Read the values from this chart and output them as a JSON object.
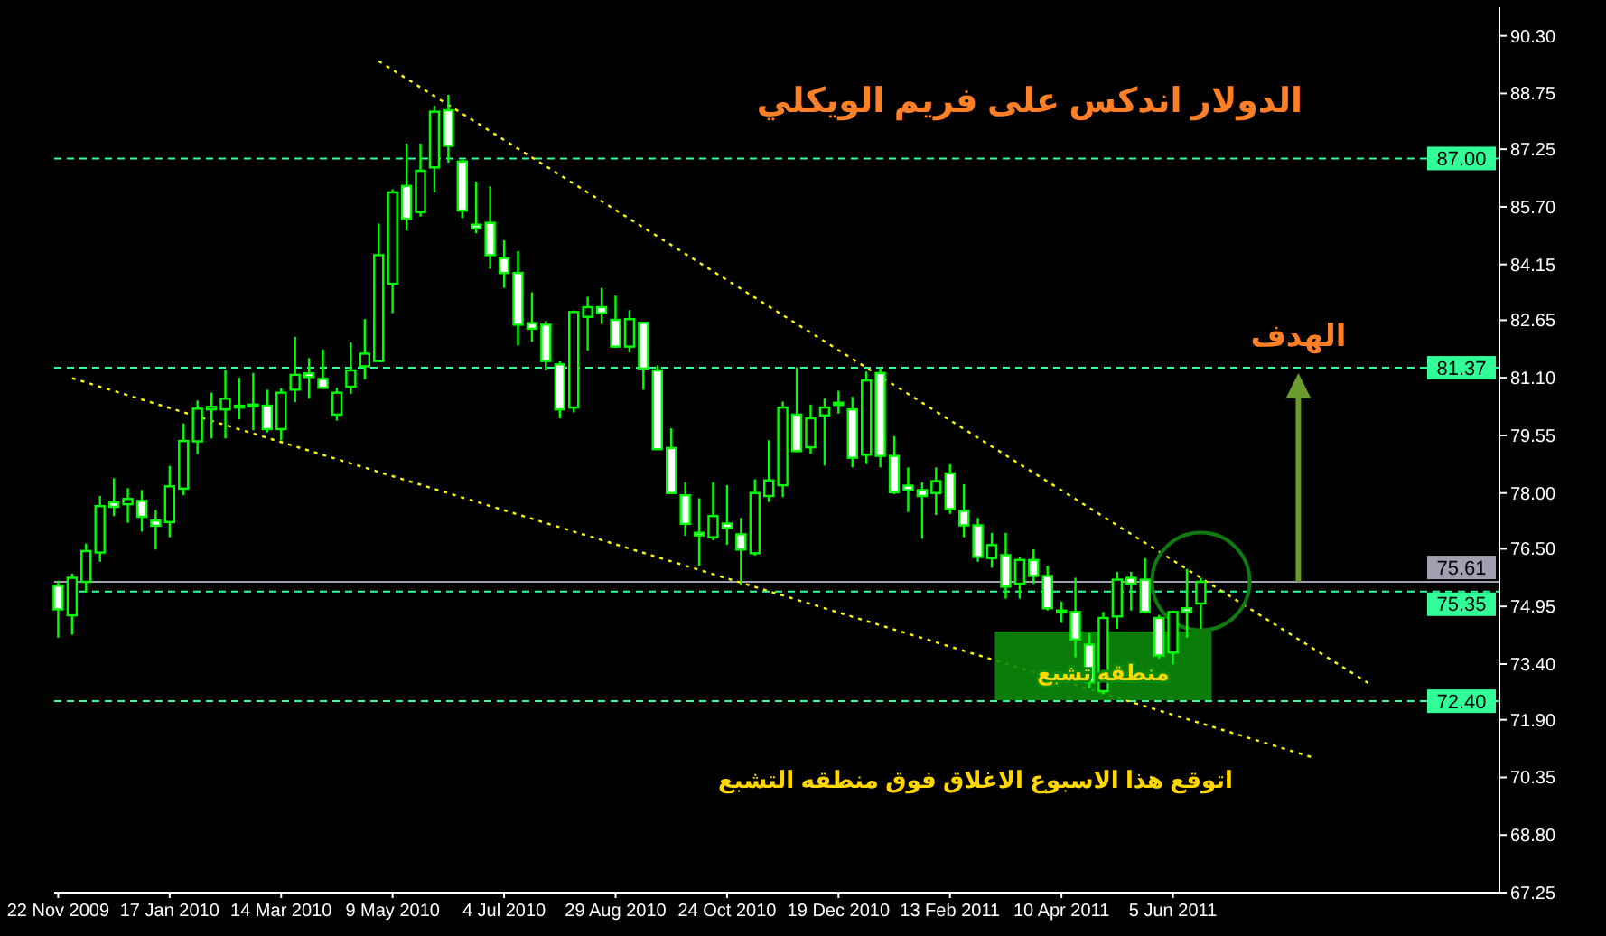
{
  "chart_data": {
    "type": "candlestick",
    "title": "الدولار اندكس على فريم الويكلي",
    "color": "#00ff00",
    "x": [
      "2009-11-22",
      "2009-11-29",
      "2009-12-06",
      "2009-12-13",
      "2009-12-20",
      "2009-12-27",
      "2010-01-03",
      "2010-01-10",
      "2010-01-17",
      "2010-01-24",
      "2010-01-31",
      "2010-02-07",
      "2010-02-14",
      "2010-02-21",
      "2010-02-28",
      "2010-03-07",
      "2010-03-14",
      "2010-03-21",
      "2010-03-28",
      "2010-04-04",
      "2010-04-11",
      "2010-04-18",
      "2010-04-25",
      "2010-05-02",
      "2010-05-09",
      "2010-05-16",
      "2010-05-23",
      "2010-05-30",
      "2010-06-06",
      "2010-06-13",
      "2010-06-20",
      "2010-06-27",
      "2010-07-04",
      "2010-07-11",
      "2010-07-18",
      "2010-07-25",
      "2010-08-01",
      "2010-08-08",
      "2010-08-15",
      "2010-08-22",
      "2010-08-29",
      "2010-09-05",
      "2010-09-12",
      "2010-09-19",
      "2010-09-26",
      "2010-10-03",
      "2010-10-10",
      "2010-10-17",
      "2010-10-24",
      "2010-10-31",
      "2010-11-07",
      "2010-11-14",
      "2010-11-21",
      "2010-11-28",
      "2010-12-05",
      "2010-12-12",
      "2010-12-19",
      "2010-12-26",
      "2011-01-02",
      "2011-01-09",
      "2011-01-16",
      "2011-01-23",
      "2011-01-30",
      "2011-02-06",
      "2011-02-13",
      "2011-02-20",
      "2011-02-27",
      "2011-03-06",
      "2011-03-13",
      "2011-03-20",
      "2011-03-27",
      "2011-04-03",
      "2011-04-10",
      "2011-04-17",
      "2011-04-24",
      "2011-05-01",
      "2011-05-08",
      "2011-05-15",
      "2011-05-22",
      "2011-05-29",
      "2011-06-05",
      "2011-06-12",
      "2011-06-19"
    ],
    "ohlc": [
      [
        75.51,
        75.64,
        74.11,
        74.87
      ],
      [
        74.71,
        75.83,
        74.19,
        75.72
      ],
      [
        75.61,
        76.64,
        75.32,
        76.44
      ],
      [
        76.4,
        77.92,
        76.15,
        77.65
      ],
      [
        77.75,
        78.4,
        77.38,
        77.63
      ],
      [
        77.7,
        78.13,
        77.2,
        77.84
      ],
      [
        77.79,
        78.08,
        76.96,
        77.36
      ],
      [
        77.26,
        77.54,
        76.48,
        77.12
      ],
      [
        77.22,
        78.73,
        76.81,
        78.18
      ],
      [
        78.12,
        79.87,
        77.94,
        79.4
      ],
      [
        79.39,
        80.49,
        79.05,
        80.27
      ],
      [
        80.25,
        80.7,
        79.47,
        80.32
      ],
      [
        80.25,
        81.31,
        79.47,
        80.54
      ],
      [
        80.3,
        81.1,
        79.98,
        80.35
      ],
      [
        80.33,
        81.23,
        79.69,
        80.38
      ],
      [
        80.35,
        80.78,
        79.63,
        79.72
      ],
      [
        79.72,
        80.82,
        79.42,
        80.7
      ],
      [
        80.78,
        82.2,
        80.45,
        81.18
      ],
      [
        81.22,
        81.63,
        80.54,
        81.12
      ],
      [
        81.07,
        81.86,
        80.8,
        80.83
      ],
      [
        80.11,
        80.83,
        79.95,
        80.7
      ],
      [
        80.86,
        82.05,
        80.67,
        81.3
      ],
      [
        81.41,
        82.68,
        81.06,
        81.75
      ],
      [
        81.55,
        85.25,
        81.54,
        84.4
      ],
      [
        83.63,
        86.17,
        82.84,
        86.09
      ],
      [
        86.26,
        87.4,
        85.06,
        85.38
      ],
      [
        85.56,
        87.4,
        85.44,
        86.67
      ],
      [
        86.76,
        88.42,
        86.09,
        88.26
      ],
      [
        88.3,
        88.71,
        86.89,
        87.34
      ],
      [
        86.92,
        86.97,
        85.4,
        85.6
      ],
      [
        85.22,
        86.38,
        84.99,
        85.12
      ],
      [
        85.27,
        86.25,
        84.03,
        84.4
      ],
      [
        84.32,
        84.8,
        83.52,
        83.92
      ],
      [
        83.92,
        84.51,
        81.97,
        82.53
      ],
      [
        82.57,
        83.4,
        82.07,
        82.42
      ],
      [
        82.53,
        82.63,
        81.3,
        81.55
      ],
      [
        81.46,
        81.54,
        80.01,
        80.25
      ],
      [
        80.3,
        82.91,
        80.17,
        82.87
      ],
      [
        82.74,
        83.28,
        81.83,
        83.0
      ],
      [
        83.0,
        83.52,
        82.55,
        82.84
      ],
      [
        82.66,
        83.31,
        81.91,
        81.94
      ],
      [
        81.94,
        82.92,
        81.78,
        82.68
      ],
      [
        82.58,
        82.58,
        80.78,
        81.35
      ],
      [
        81.3,
        81.43,
        79.18,
        79.18
      ],
      [
        79.21,
        79.74,
        77.97,
        78.0
      ],
      [
        77.94,
        78.29,
        76.85,
        77.17
      ],
      [
        76.93,
        77.86,
        76.04,
        76.86
      ],
      [
        76.81,
        78.29,
        76.73,
        77.38
      ],
      [
        77.18,
        78.21,
        76.61,
        77.06
      ],
      [
        76.89,
        77.33,
        75.51,
        76.48
      ],
      [
        76.38,
        78.37,
        76.32,
        78.0
      ],
      [
        77.92,
        79.42,
        77.76,
        78.34
      ],
      [
        78.21,
        80.46,
        77.89,
        80.3
      ],
      [
        80.11,
        81.38,
        79.1,
        79.13
      ],
      [
        79.23,
        80.38,
        79.06,
        80.01
      ],
      [
        80.09,
        80.54,
        78.74,
        80.3
      ],
      [
        80.37,
        80.75,
        80.14,
        80.43
      ],
      [
        80.25,
        80.59,
        78.69,
        78.95
      ],
      [
        79.03,
        81.27,
        78.78,
        81.03
      ],
      [
        81.23,
        81.35,
        78.69,
        79.0
      ],
      [
        79.0,
        79.53,
        77.97,
        78.02
      ],
      [
        78.2,
        78.69,
        77.49,
        78.08
      ],
      [
        78.08,
        78.29,
        76.77,
        77.92
      ],
      [
        78.0,
        78.69,
        77.41,
        78.32
      ],
      [
        78.53,
        78.77,
        77.44,
        77.57
      ],
      [
        77.52,
        78.24,
        76.81,
        77.13
      ],
      [
        77.13,
        77.33,
        76.15,
        76.28
      ],
      [
        76.25,
        76.93,
        75.99,
        76.6
      ],
      [
        76.33,
        76.93,
        75.16,
        75.48
      ],
      [
        75.56,
        76.28,
        75.16,
        76.2
      ],
      [
        76.2,
        76.49,
        75.56,
        75.77
      ],
      [
        75.77,
        76.04,
        74.84,
        74.9
      ],
      [
        74.84,
        75.08,
        74.51,
        74.79
      ],
      [
        74.8,
        75.72,
        73.58,
        74.06
      ],
      [
        73.92,
        74.23,
        72.75,
        72.91
      ],
      [
        72.67,
        74.8,
        72.59,
        74.64
      ],
      [
        74.68,
        75.88,
        74.35,
        75.67
      ],
      [
        75.72,
        75.88,
        74.84,
        75.56
      ],
      [
        75.67,
        76.25,
        74.76,
        74.8
      ],
      [
        74.64,
        74.72,
        73.55,
        73.63
      ],
      [
        73.71,
        74.84,
        73.39,
        74.8
      ],
      [
        74.9,
        75.96,
        74.11,
        74.8
      ],
      [
        75.03,
        75.72,
        74.35,
        75.61
      ]
    ],
    "xlim": [
      "2009-11-20",
      "2011-11-16"
    ],
    "xticks": [
      {
        "value": "2009-11-22",
        "label": "22 Nov 2009"
      },
      {
        "value": "2010-01-17",
        "label": "17 Jan 2010"
      },
      {
        "value": "2010-03-14",
        "label": "14 Mar 2010"
      },
      {
        "value": "2010-05-09",
        "label": "9 May 2010"
      },
      {
        "value": "2010-07-04",
        "label": "4 Jul 2010"
      },
      {
        "value": "2010-08-29",
        "label": "29 Aug 2010"
      },
      {
        "value": "2010-10-24",
        "label": "24 Oct 2010"
      },
      {
        "value": "2010-12-19",
        "label": "19 Dec 2010"
      },
      {
        "value": "2011-02-13",
        "label": "13 Feb 2011"
      },
      {
        "value": "2011-04-10",
        "label": "10 Apr 2011"
      },
      {
        "value": "2011-06-05",
        "label": "5 Jun 2011"
      }
    ],
    "ylim": [
      67.25,
      91.07
    ],
    "yticks": [
      {
        "value": 67.25,
        "label": "67.25"
      },
      {
        "value": 68.8,
        "label": "68.80"
      },
      {
        "value": 70.35,
        "label": "70.35"
      },
      {
        "value": 71.9,
        "label": "71.90"
      },
      {
        "value": 73.4,
        "label": "73.40"
      },
      {
        "value": 74.95,
        "label": "74.95"
      },
      {
        "value": 76.5,
        "label": "76.50"
      },
      {
        "value": 78,
        "label": "78.00"
      },
      {
        "value": 79.55,
        "label": "79.55"
      },
      {
        "value": 81.1,
        "label": "81.10"
      },
      {
        "value": 82.65,
        "label": "82.65"
      },
      {
        "value": 84.15,
        "label": "84.15"
      },
      {
        "value": 85.7,
        "label": "85.70"
      },
      {
        "value": 87.25,
        "label": "87.25"
      },
      {
        "value": 88.75,
        "label": "88.75"
      },
      {
        "value": 90.3,
        "label": "90.30"
      }
    ],
    "series": [
      {
        "type": "line",
        "x": [
          "2010-05-02",
          "2011-09-11"
        ],
        "values": [
          89.62,
          72.89
        ],
        "color": "#ffff00",
        "line_style": "dotted"
      },
      {
        "type": "line",
        "x": [
          "2009-11-29",
          "2011-08-14"
        ],
        "values": [
          81.09,
          70.89
        ],
        "color": "#ffff00",
        "line_style": "dotted"
      }
    ],
    "ref_lines": [
      {
        "axis": "y",
        "value": 87.0,
        "label": "87.00",
        "color": "#33ff99",
        "line_style": "dashed"
      },
      {
        "axis": "y",
        "value": 81.37,
        "label": "81.37",
        "color": "#33ff99",
        "line_style": "dashed"
      },
      {
        "axis": "y",
        "value": 75.35,
        "label": "75.35",
        "color": "#33ff99",
        "line_style": "dashed"
      },
      {
        "axis": "y",
        "value": 72.4,
        "label": "72.40",
        "color": "#33ff99",
        "line_style": "dashed"
      },
      {
        "axis": "y",
        "value": 75.61,
        "label": "75.61",
        "color": "#a0a0b0",
        "line_style": "solid"
      }
    ],
    "annotations": [
      {
        "text": "منطقه تشبع",
        "x": "2011-05-01",
        "y": 73.4
      },
      {
        "text": "الهدف",
        "x": "2011-08-07",
        "y": 81.37
      },
      "اتوقع هذا الاسبوع الاغلاق فوق منطقه التشبع"
    ]
  }
}
